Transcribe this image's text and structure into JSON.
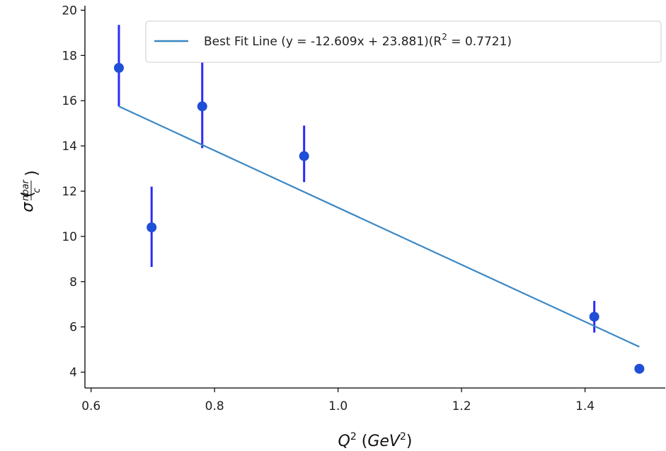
{
  "chart_data": {
    "type": "scatter",
    "title": "",
    "xlabel": "Q² (GeV²)",
    "ylabel": "σ (nbar/c)",
    "xlim": [
      0.59,
      1.53
    ],
    "ylim": [
      3.3,
      20.2
    ],
    "xticks": [
      "0.6",
      "0.8",
      "1.0",
      "1.2",
      "1.4"
    ],
    "yticks": [
      "4",
      "6",
      "8",
      "10",
      "12",
      "14",
      "16",
      "18",
      "20"
    ],
    "grid": false,
    "legend_position": "top-right",
    "series": [
      {
        "name": "",
        "kind": "points_with_error",
        "color": "#1f4fd6",
        "error_color": "#2a2aff",
        "points": [
          {
            "x": 0.645,
            "y": 17.45,
            "err_low": 1.7,
            "err_high": 1.9
          },
          {
            "x": 0.698,
            "y": 10.4,
            "err_low": 1.75,
            "err_high": 1.8
          },
          {
            "x": 0.78,
            "y": 15.75,
            "err_low": 1.85,
            "err_high": 1.95
          },
          {
            "x": 0.945,
            "y": 13.55,
            "err_low": 1.15,
            "err_high": 1.35
          },
          {
            "x": 1.415,
            "y": 6.45,
            "err_low": 0.7,
            "err_high": 0.7
          },
          {
            "x": 1.488,
            "y": 4.15,
            "err_low": 0,
            "err_high": 0
          }
        ]
      },
      {
        "name": "Best Fit Line (y = -12.609x + 23.881)(R² = 0.7721)",
        "legend_main": "Best Fit Line (y = -12.609x + 23.881)(R",
        "legend_sup": "2",
        "legend_tail": " = 0.7721)",
        "kind": "line",
        "color": "#3a87c4",
        "slope": -12.609,
        "intercept": 23.881,
        "x": [
          0.645,
          1.488
        ]
      }
    ]
  }
}
